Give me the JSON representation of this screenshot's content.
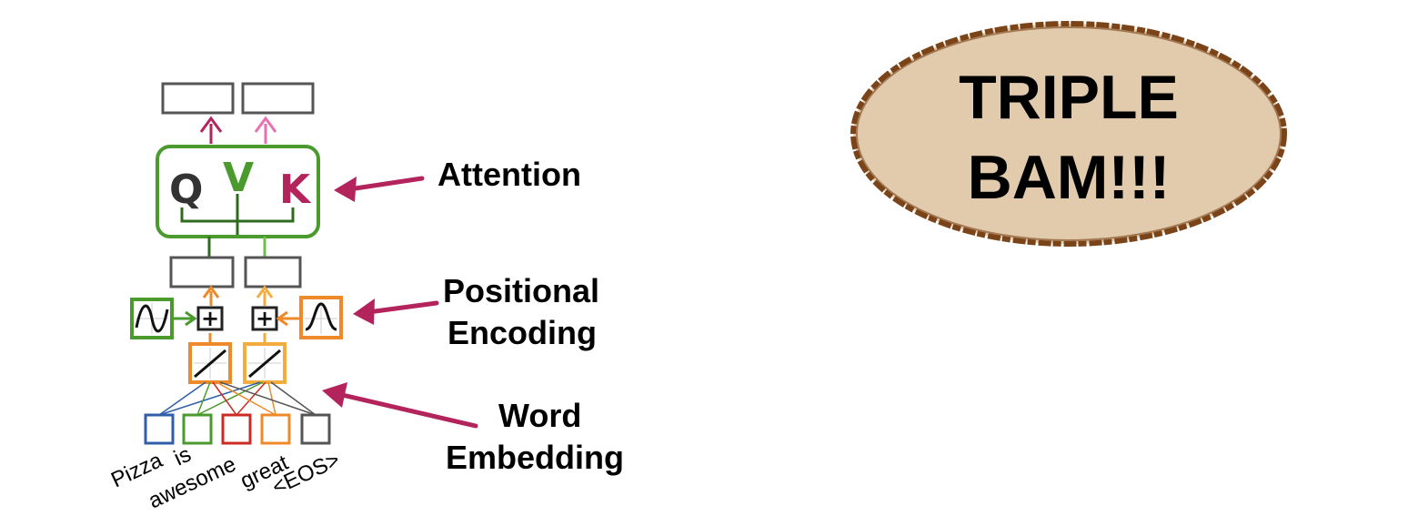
{
  "labels": {
    "attention": "Attention",
    "positional_line1": "Positional",
    "positional_line2": "Encoding",
    "word_line1": "Word",
    "word_line2": "Embedding"
  },
  "qvk": {
    "q": "Q",
    "v": "V",
    "k": "K"
  },
  "plus_symbol": "+",
  "words": [
    "Pizza",
    "is",
    "awesome",
    "great",
    "<EOS>"
  ],
  "bam": {
    "line1": "TRIPLE",
    "line2": "BAM!!!"
  },
  "colors": {
    "green": "#4a9a2e",
    "dark_green": "#2f6b1c",
    "light_green": "#6cc04a",
    "orange": "#ef8a2a",
    "light_orange": "#f3ad3e",
    "magenta": "#b3245d",
    "pink": "#e86fb0",
    "blue": "#2f5fa8",
    "red": "#cc2b24",
    "gray": "#555555",
    "tan": "#e2cbad",
    "brown": "#7a4318"
  },
  "icons": {
    "sine": "sine-wave-icon",
    "cosine": "bell-curve-icon",
    "linear": "linear-activation-icon",
    "plus": "plus-icon",
    "arrow": "pointer-arrow-icon"
  }
}
